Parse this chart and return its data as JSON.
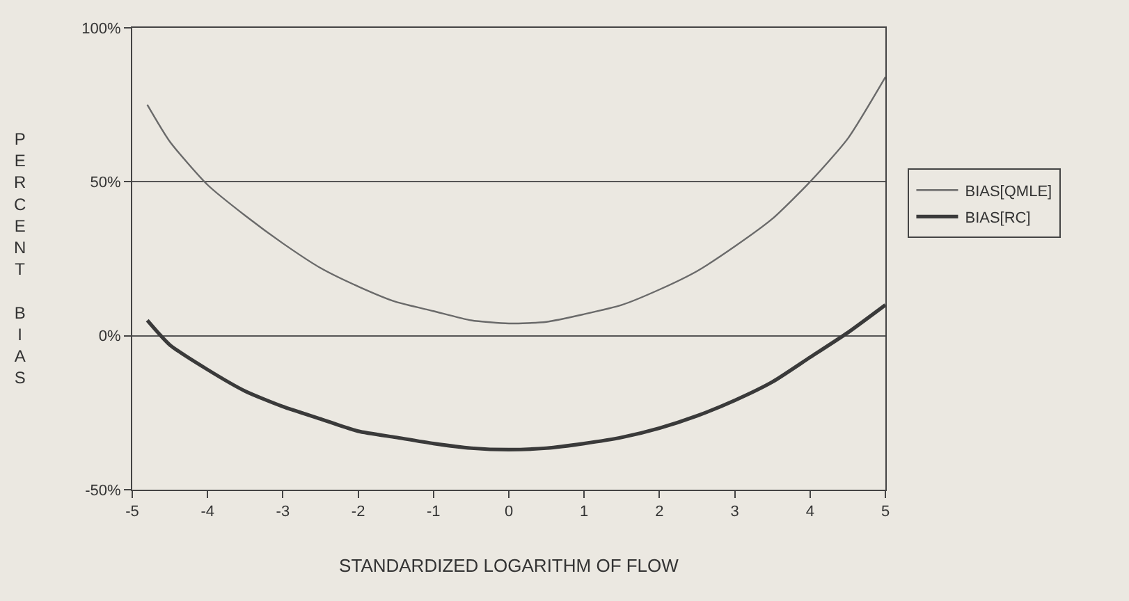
{
  "chart_data": {
    "type": "line",
    "xlabel": "STANDARDIZED LOGARITHM OF FLOW",
    "ylabel": "PERCENT BIAS",
    "x": [
      -4.8,
      -4.5,
      -4,
      -3.5,
      -3,
      -2.5,
      -2,
      -1.5,
      -1,
      -0.5,
      0,
      0.5,
      1,
      1.5,
      2,
      2.5,
      3,
      3.5,
      4,
      4.5,
      5
    ],
    "series": [
      {
        "name": "BIAS[QMLE]",
        "color": "#6a6a6a",
        "values": [
          75,
          63,
          49,
          39,
          30,
          22,
          16,
          11,
          8,
          5,
          4,
          4.5,
          7,
          10,
          15,
          21,
          29,
          38,
          50,
          64,
          84
        ]
      },
      {
        "name": "BIAS[RC]",
        "color": "#3a3a3a",
        "values": [
          5,
          -3,
          -11,
          -18,
          -23,
          -27,
          -31,
          -33,
          -35,
          -36.5,
          -37,
          -36.5,
          -35,
          -33,
          -30,
          -26,
          -21,
          -15,
          -7,
          1,
          10
        ]
      }
    ],
    "xlim": [
      -5,
      5
    ],
    "xticks": [
      -5,
      -4,
      -3,
      -2,
      -1,
      0,
      1,
      2,
      3,
      4,
      5
    ],
    "ylim": [
      -50,
      100
    ],
    "yticks": [
      {
        "value": -50,
        "label": "-50%"
      },
      {
        "value": 0,
        "label": "0%"
      },
      {
        "value": 50,
        "label": "50%"
      },
      {
        "value": 100,
        "label": "100%"
      }
    ],
    "grid": "y",
    "legend": "right",
    "marker": "none",
    "line_style": "solid"
  }
}
